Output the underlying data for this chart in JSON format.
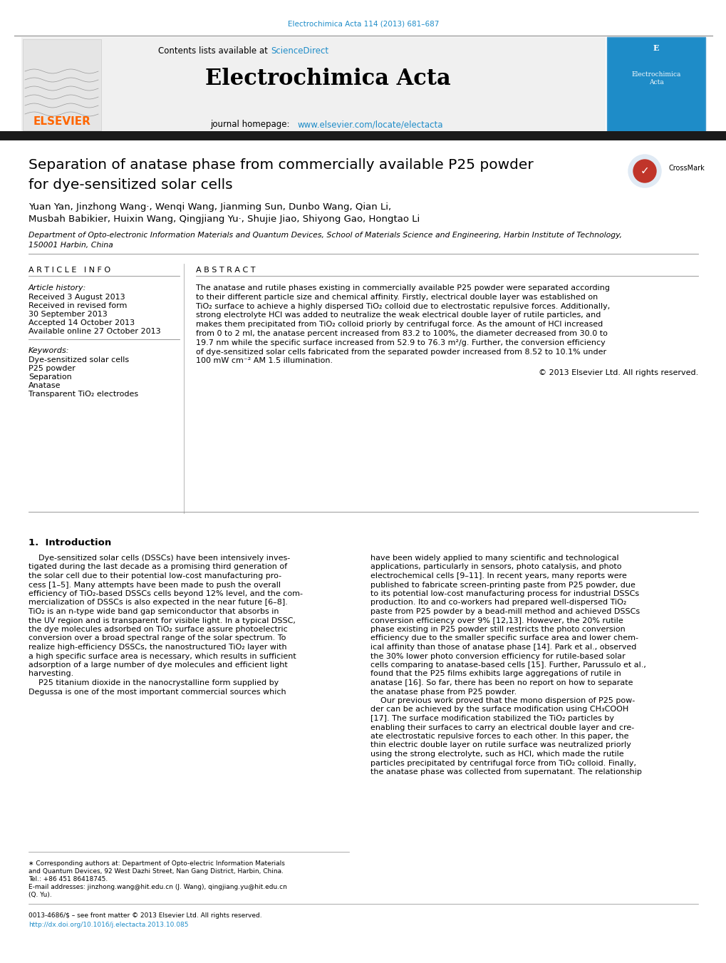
{
  "page_title_small": "Electrochimica Acta 114 (2013) 681–687",
  "journal_name": "Electrochimica Acta",
  "contents_text": "Contents lists available at ScienceDirect",
  "journal_homepage": "journal homepage: www.elsevier.com/locate/electacta",
  "article_title_line1": "Separation of anatase phase from commercially available P25 powder",
  "article_title_line2": "for dye-sensitized solar cells",
  "authors_line1": "Yuan Yan, Jinzhong Wang·, Wenqi Wang, Jianming Sun, Dunbo Wang, Qian Li,",
  "authors_line2": "Musbah Babikier, Huixin Wang, Qingjiang Yu·, Shujie Jiao, Shiyong Gao, Hongtao Li",
  "affiliation1": "Department of Opto-electronic Information Materials and Quantum Devices, School of Materials Science and Engineering, Harbin Institute of Technology,",
  "affiliation2": "150001 Harbin, China",
  "article_info_header": "A R T I C L E   I N F O",
  "abstract_header": "A B S T R A C T",
  "article_history_label": "Article history:",
  "received": "Received 3 August 2013",
  "revised": "Received in revised form",
  "revised_date": "30 September 2013",
  "accepted": "Accepted 14 October 2013",
  "available": "Available online 27 October 2013",
  "keywords_label": "Keywords:",
  "keyword1": "Dye-sensitized solar cells",
  "keyword2": "P25 powder",
  "keyword3": "Separation",
  "keyword4": "Anatase",
  "keyword5": "Transparent TiO₂ electrodes",
  "abstract_lines": [
    "The anatase and rutile phases existing in commercially available P25 powder were separated according",
    "to their different particle size and chemical affinity. Firstly, electrical double layer was established on",
    "TiO₂ surface to achieve a highly dispersed TiO₂ colloid due to electrostatic repulsive forces. Additionally,",
    "strong electrolyte HCl was added to neutralize the weak electrical double layer of rutile particles, and",
    "makes them precipitated from TiO₂ colloid priorly by centrifugal force. As the amount of HCl increased",
    "from 0 to 2 ml, the anatase percent increased from 83.2 to 100%, the diameter decreased from 30.0 to",
    "19.7 nm while the specific surface increased from 52.9 to 76.3 m²/g. Further, the conversion efficiency",
    "of dye-sensitized solar cells fabricated from the separated powder increased from 8.52 to 10.1% under",
    "100 mW cm⁻² AM 1.5 illumination."
  ],
  "copyright": "© 2013 Elsevier Ltd. All rights reserved.",
  "intro_header": "1.  Introduction",
  "intro_left_lines": [
    "    Dye-sensitized solar cells (DSSCs) have been intensively inves-",
    "tigated during the last decade as a promising third generation of",
    "the solar cell due to their potential low-cost manufacturing pro-",
    "cess [1–5]. Many attempts have been made to push the overall",
    "efficiency of TiO₂-based DSSCs cells beyond 12% level, and the com-",
    "mercialization of DSSCs is also expected in the near future [6–8].",
    "TiO₂ is an n-type wide band gap semiconductor that absorbs in",
    "the UV region and is transparent for visible light. In a typical DSSC,",
    "the dye molecules adsorbed on TiO₂ surface assure photoelectric",
    "conversion over a broad spectral range of the solar spectrum. To",
    "realize high-efficiency DSSCs, the nanostructured TiO₂ layer with",
    "a high specific surface area is necessary, which results in sufficient",
    "adsorption of a large number of dye molecules and efficient light",
    "harvesting.",
    "    P25 titanium dioxide in the nanocrystalline form supplied by",
    "Degussa is one of the most important commercial sources which"
  ],
  "intro_right_lines": [
    "have been widely applied to many scientific and technological",
    "applications, particularly in sensors, photo catalysis, and photo",
    "electrochemical cells [9–11]. In recent years, many reports were",
    "published to fabricate screen-printing paste from P25 powder, due",
    "to its potential low-cost manufacturing process for industrial DSSCs",
    "production. Ito and co-workers had prepared well-dispersed TiO₂",
    "paste from P25 powder by a bead-mill method and achieved DSSCs",
    "conversion efficiency over 9% [12,13]. However, the 20% rutile",
    "phase existing in P25 powder still restricts the photo conversion",
    "efficiency due to the smaller specific surface area and lower chem-",
    "ical affinity than those of anatase phase [14]. Park et al., observed",
    "the 30% lower photo conversion efficiency for rutile-based solar",
    "cells comparing to anatase-based cells [15]. Further, Parussulo et al.,",
    "found that the P25 films exhibits large aggregations of rutile in",
    "anatase [16]. So far, there has been no report on how to separate",
    "the anatase phase from P25 powder.",
    "    Our previous work proved that the mono dispersion of P25 pow-",
    "der can be achieved by the surface modification using CH₃COOH",
    "[17]. The surface modification stabilized the TiO₂ particles by",
    "enabling their surfaces to carry an electrical double layer and cre-",
    "ate electrostatic repulsive forces to each other. In this paper, the",
    "thin electric double layer on rutile surface was neutralized priorly",
    "using the strong electrolyte, such as HCl, which made the rutile",
    "particles precipitated by centrifugal force from TiO₂ colloid. Finally,",
    "the anatase phase was collected from supernatant. The relationship"
  ],
  "footer_lines": [
    "∗ Corresponding authors at: Department of Opto-electric Information Materials",
    "and Quantum Devices, 92 West Dazhi Street, Nan Gang District, Harbin, China.",
    "Tel.: +86 451 86418745.",
    "E-mail addresses: jinzhong.wang@hit.edu.cn (J. Wang), qingjiang.yu@hit.edu.cn",
    "(Q. Yu)."
  ],
  "bottom_line1": "0013-4686/$ – see front matter © 2013 Elsevier Ltd. All rights reserved.",
  "bottom_line2": "http://dx.doi.org/10.1016/j.electacta.2013.10.085",
  "elsevier_color": "#FF6600",
  "sciencedirect_color": "#1E8CC8",
  "link_color": "#1E8CC8",
  "header_bar_color": "#1a1a1a",
  "background_color": "#ffffff",
  "header_bg_color": "#f0f0f0"
}
